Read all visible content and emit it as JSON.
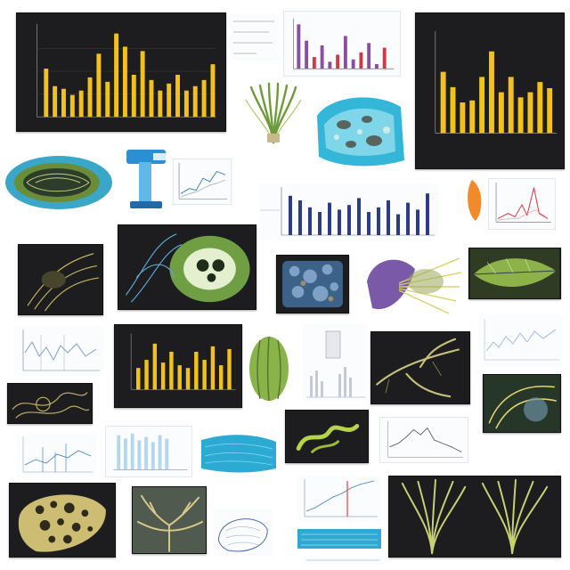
{
  "canvas": {
    "background": "#ffffff"
  },
  "palette": {
    "dark_panel": "#1d1d1f",
    "bar_yellow": "#f2c11c",
    "bar_navy": "#2c3c86",
    "bar_purple": "#8c4f9f",
    "bar_red": "#c93c45",
    "leaf_green": "#8db24a",
    "water_cyan": "#2bb6d9",
    "line_blue": "#3f7fb6",
    "line_red": "#d5424a"
  },
  "tiles": [
    {
      "id": "dark-bar-chart-top-left",
      "kind": "bar-chart",
      "theme": "dark"
    },
    {
      "id": "purple-bar-chart-top",
      "kind": "bar-chart",
      "theme": "light"
    },
    {
      "id": "dark-bar-chart-top-right",
      "kind": "bar-chart",
      "theme": "light"
    },
    {
      "id": "green-plant-illustration",
      "kind": "illustration"
    },
    {
      "id": "blue-organism-illustration",
      "kind": "illustration"
    },
    {
      "id": "cell-cross-section",
      "kind": "illustration"
    },
    {
      "id": "blue-apparatus-illustration",
      "kind": "illustration"
    },
    {
      "id": "navy-bar-chart-middle",
      "kind": "bar-chart",
      "theme": "light"
    },
    {
      "id": "red-line-chart-right",
      "kind": "line-chart",
      "theme": "light"
    },
    {
      "id": "dark-micrograph-left",
      "kind": "photo",
      "theme": "dark"
    },
    {
      "id": "dark-cell-micrograph",
      "kind": "photo",
      "theme": "dark"
    },
    {
      "id": "blue-tissue-micrograph",
      "kind": "photo",
      "theme": "dark"
    },
    {
      "id": "purple-yellow-leaf",
      "kind": "illustration"
    },
    {
      "id": "green-leaf-photo",
      "kind": "photo"
    },
    {
      "id": "dark-bar-chart-center",
      "kind": "bar-chart",
      "theme": "dark"
    },
    {
      "id": "green-pod-illustration",
      "kind": "illustration"
    },
    {
      "id": "dark-root-micrograph",
      "kind": "photo",
      "theme": "dark"
    },
    {
      "id": "dark-root-micrograph-right",
      "kind": "photo",
      "theme": "dark"
    },
    {
      "id": "dark-tangle-micrograph-left",
      "kind": "photo",
      "theme": "dark"
    },
    {
      "id": "yellow-fibers-micrograph",
      "kind": "photo",
      "theme": "dark"
    },
    {
      "id": "light-line-chart",
      "kind": "line-chart",
      "theme": "light"
    },
    {
      "id": "blue-texture-illustration",
      "kind": "illustration"
    },
    {
      "id": "network-lattice-micrograph",
      "kind": "photo",
      "theme": "dark"
    },
    {
      "id": "branching-structure-photo",
      "kind": "photo"
    },
    {
      "id": "sketch-organism",
      "kind": "illustration"
    },
    {
      "id": "red-blue-line-chart",
      "kind": "line-chart",
      "theme": "light"
    },
    {
      "id": "blue-water-strip",
      "kind": "illustration"
    },
    {
      "id": "dark-root-fan-large",
      "kind": "photo",
      "theme": "dark"
    }
  ]
}
